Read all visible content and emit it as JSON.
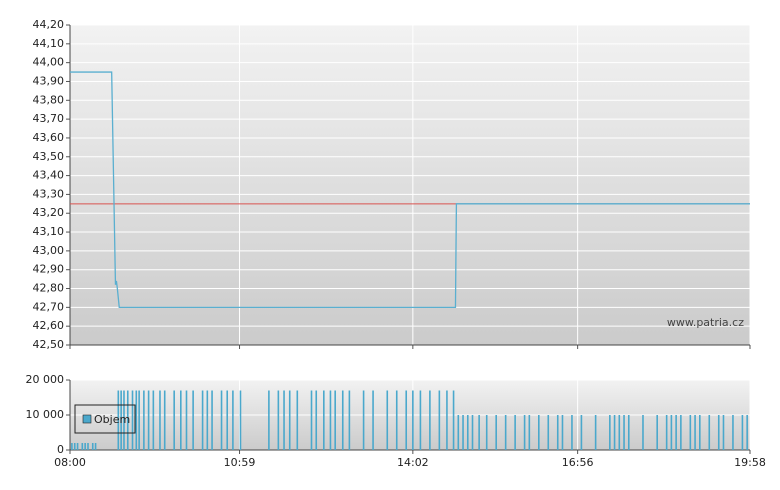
{
  "chart_data": [
    {
      "type": "line",
      "xlim": [
        480,
        1198
      ],
      "xticks": [
        {
          "value": 480,
          "label": "08:00"
        },
        {
          "value": 659,
          "label": "10:59"
        },
        {
          "value": 842,
          "label": "14:02"
        },
        {
          "value": 1016,
          "label": "16:56"
        },
        {
          "value": 1198,
          "label": "19:58"
        }
      ],
      "ylim": [
        42.5,
        44.2
      ],
      "yticks": [
        {
          "value": 42.5,
          "label": "42,50"
        },
        {
          "value": 42.6,
          "label": "42,60"
        },
        {
          "value": 42.7,
          "label": "42,70"
        },
        {
          "value": 42.8,
          "label": "42,80"
        },
        {
          "value": 42.9,
          "label": "42,90"
        },
        {
          "value": 43.0,
          "label": "43,00"
        },
        {
          "value": 43.1,
          "label": "43,10"
        },
        {
          "value": 43.2,
          "label": "43,20"
        },
        {
          "value": 43.3,
          "label": "43,30"
        },
        {
          "value": 43.4,
          "label": "43,40"
        },
        {
          "value": 43.5,
          "label": "43,50"
        },
        {
          "value": 43.6,
          "label": "43,60"
        },
        {
          "value": 43.7,
          "label": "43,70"
        },
        {
          "value": 43.8,
          "label": "43,80"
        },
        {
          "value": 43.9,
          "label": "43,90"
        },
        {
          "value": 44.0,
          "label": "44,00"
        },
        {
          "value": 44.1,
          "label": "44,10"
        },
        {
          "value": 44.2,
          "label": "44,20"
        }
      ],
      "grid": true,
      "series": [
        {
          "color": "#5aafd0",
          "x": [
            480,
            524,
            528,
            529,
            530,
            532,
            887,
            888,
            1198
          ],
          "values": [
            43.95,
            43.95,
            42.82,
            42.84,
            42.8,
            42.7,
            42.7,
            43.25,
            43.25
          ]
        }
      ],
      "reference": {
        "value": 43.25,
        "color": "#d9534f"
      },
      "watermark": "www.patria.cz"
    },
    {
      "type": "bar",
      "xlim": [
        480,
        1198
      ],
      "xticks": [
        {
          "value": 480,
          "label": "08:00"
        },
        {
          "value": 659,
          "label": "10:59"
        },
        {
          "value": 842,
          "label": "14:02"
        },
        {
          "value": 1016,
          "label": "16:56"
        },
        {
          "value": 1198,
          "label": "19:58"
        }
      ],
      "ylim": [
        0,
        20000
      ],
      "yticks": [
        {
          "value": 0,
          "label": "0"
        },
        {
          "value": 10000,
          "label": "10 000"
        },
        {
          "value": 20000,
          "label": "20 000"
        }
      ],
      "grid": true,
      "legend": "left",
      "series": [
        {
          "name": "Objem",
          "color": "#4aa8cc",
          "x": [
            482,
            485,
            488,
            493,
            496,
            499,
            504,
            507,
            531,
            534,
            537,
            541,
            546,
            550,
            553,
            558,
            563,
            568,
            575,
            580,
            590,
            597,
            603,
            610,
            620,
            625,
            630,
            640,
            646,
            652,
            660,
            690,
            700,
            706,
            712,
            720,
            735,
            740,
            748,
            755,
            760,
            768,
            775,
            790,
            800,
            815,
            825,
            835,
            842,
            850,
            860,
            870,
            878,
            885,
            890,
            895,
            900,
            905,
            912,
            920,
            930,
            940,
            950,
            960,
            965,
            975,
            985,
            995,
            1000,
            1010,
            1020,
            1035,
            1050,
            1055,
            1060,
            1065,
            1070,
            1085,
            1100,
            1110,
            1115,
            1120,
            1125,
            1135,
            1140,
            1145,
            1155,
            1165,
            1170,
            1180,
            1190,
            1195
          ],
          "values": [
            2000,
            2000,
            2000,
            2000,
            2000,
            2000,
            2000,
            2000,
            17000,
            17000,
            17000,
            17000,
            17000,
            17000,
            17000,
            17000,
            17000,
            17000,
            17000,
            17000,
            17000,
            17000,
            17000,
            17000,
            17000,
            17000,
            17000,
            17000,
            17000,
            17000,
            17000,
            17000,
            17000,
            17000,
            17000,
            17000,
            17000,
            17000,
            17000,
            17000,
            17000,
            17000,
            17000,
            17000,
            17000,
            17000,
            17000,
            17000,
            17000,
            17000,
            17000,
            17000,
            17000,
            17000,
            10000,
            10000,
            10000,
            10000,
            10000,
            10000,
            10000,
            10000,
            10000,
            10000,
            10000,
            10000,
            10000,
            10000,
            10000,
            10000,
            10000,
            10000,
            10000,
            10000,
            10000,
            10000,
            10000,
            10000,
            10000,
            10000,
            10000,
            10000,
            10000,
            10000,
            10000,
            10000,
            10000,
            10000,
            10000,
            10000,
            10000,
            10000
          ]
        }
      ]
    }
  ]
}
